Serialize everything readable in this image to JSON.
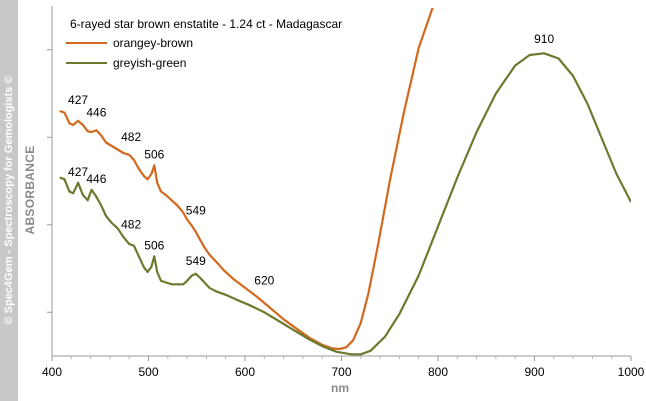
{
  "side_credit": "© Spec4Gem - Spectroscopy for Gemologists ©",
  "chart_data": {
    "type": "line",
    "title": "6-rayed star brown enstatite - 1.24 ct - Madagascar",
    "xlabel": "nm",
    "ylabel": "ABSORBANCE",
    "xlim": [
      400,
      1000
    ],
    "ylim": [
      0,
      10
    ],
    "x_ticks": [
      400,
      500,
      600,
      700,
      800,
      900,
      1000
    ],
    "y_tick_count": 4,
    "grid": false,
    "legend_position": "top-left",
    "series": [
      {
        "name": "orangey-brown",
        "color": "#d2691e",
        "x": [
          408,
          413,
          418,
          422,
          427,
          432,
          437,
          441,
          446,
          451,
          456,
          462,
          468,
          474,
          480,
          485,
          490,
          495,
          499,
          503,
          506,
          509,
          513,
          518,
          524,
          530,
          536,
          540,
          545,
          549,
          553,
          558,
          563,
          570,
          578,
          588,
          600,
          612,
          625,
          640,
          655,
          668,
          680,
          690,
          698,
          705,
          712,
          720,
          728,
          738,
          750,
          765,
          780,
          795,
          804
        ],
        "values": [
          7.0,
          6.95,
          6.65,
          6.6,
          6.72,
          6.6,
          6.42,
          6.4,
          6.45,
          6.3,
          6.1,
          6.0,
          5.9,
          5.8,
          5.75,
          5.6,
          5.35,
          5.15,
          5.05,
          5.2,
          5.45,
          4.95,
          4.7,
          4.6,
          4.45,
          4.3,
          4.1,
          3.9,
          3.72,
          3.55,
          3.35,
          3.1,
          2.9,
          2.7,
          2.45,
          2.2,
          1.95,
          1.7,
          1.4,
          1.05,
          0.75,
          0.5,
          0.32,
          0.22,
          0.2,
          0.25,
          0.45,
          0.95,
          1.8,
          3.2,
          5.0,
          7.0,
          8.8,
          10.0,
          10.0
        ]
      },
      {
        "name": "greyish-green",
        "color": "#6b7a2e",
        "x": [
          408,
          413,
          418,
          422,
          427,
          432,
          437,
          441,
          446,
          451,
          456,
          462,
          468,
          474,
          480,
          485,
          490,
          495,
          499,
          503,
          506,
          509,
          513,
          518,
          524,
          530,
          536,
          540,
          545,
          549,
          553,
          558,
          563,
          570,
          580,
          592,
          605,
          620,
          635,
          650,
          665,
          680,
          695,
          710,
          720,
          730,
          745,
          760,
          780,
          800,
          820,
          840,
          860,
          880,
          895,
          910,
          925,
          940,
          955,
          970,
          985,
          1000
        ],
        "values": [
          5.1,
          5.05,
          4.7,
          4.65,
          4.95,
          4.6,
          4.45,
          4.75,
          4.55,
          4.3,
          4.0,
          3.8,
          3.65,
          3.4,
          3.2,
          3.15,
          2.85,
          2.55,
          2.4,
          2.55,
          2.85,
          2.4,
          2.15,
          2.1,
          2.05,
          2.05,
          2.05,
          2.15,
          2.3,
          2.35,
          2.25,
          2.1,
          1.95,
          1.85,
          1.75,
          1.6,
          1.45,
          1.25,
          1.0,
          0.75,
          0.5,
          0.28,
          0.12,
          0.05,
          0.05,
          0.15,
          0.55,
          1.2,
          2.3,
          3.7,
          5.1,
          6.4,
          7.5,
          8.3,
          8.6,
          8.65,
          8.5,
          8.0,
          7.2,
          6.2,
          5.2,
          4.4
        ]
      }
    ],
    "annotations": [
      {
        "text": "427",
        "x": 427,
        "y": 7.2,
        "series": "orangey-brown"
      },
      {
        "text": "446",
        "x": 446,
        "y": 6.85,
        "series": "orangey-brown"
      },
      {
        "text": "482",
        "x": 482,
        "y": 6.15,
        "series": "orangey-brown"
      },
      {
        "text": "506",
        "x": 506,
        "y": 5.65,
        "series": "orangey-brown"
      },
      {
        "text": "549",
        "x": 549,
        "y": 4.05,
        "series": "orangey-brown"
      },
      {
        "text": "427",
        "x": 427,
        "y": 5.15,
        "series": "greyish-green"
      },
      {
        "text": "446",
        "x": 446,
        "y": 4.95,
        "series": "greyish-green"
      },
      {
        "text": "482",
        "x": 482,
        "y": 3.65,
        "series": "greyish-green"
      },
      {
        "text": "506",
        "x": 506,
        "y": 3.05,
        "series": "greyish-green"
      },
      {
        "text": "549",
        "x": 549,
        "y": 2.6,
        "series": "greyish-green"
      },
      {
        "text": "620",
        "x": 620,
        "y": 2.05,
        "series": "greyish-green"
      },
      {
        "text": "910",
        "x": 910,
        "y": 8.95,
        "series": "greyish-green"
      }
    ]
  }
}
